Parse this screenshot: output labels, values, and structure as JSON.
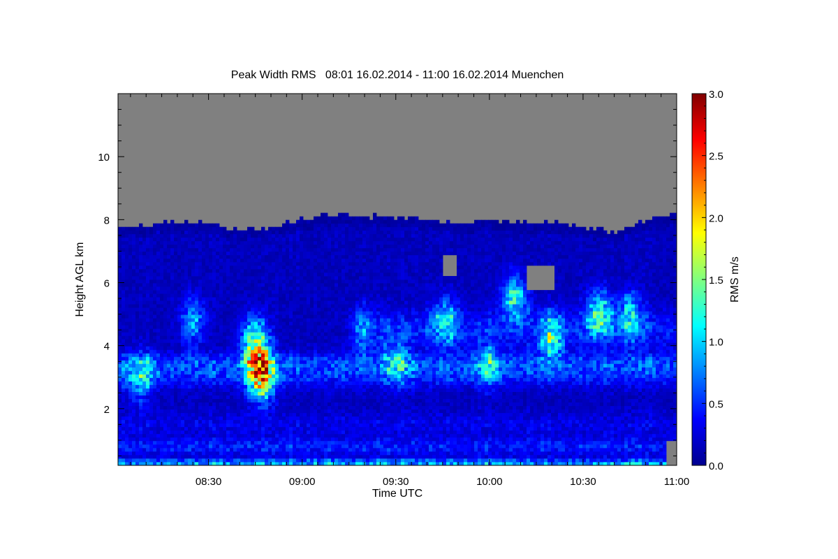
{
  "chart_data": {
    "type": "heatmap",
    "title": "Peak Width RMS   08:01 16.02.2014 - 11:00 16.02.2014 Muenchen",
    "xlabel": "Time UTC",
    "ylabel": "Height AGL km",
    "colorbar_label": "RMS m/s",
    "xlim_minutes": [
      481,
      660
    ],
    "ylim": [
      0.2,
      12.0
    ],
    "clim": [
      0.0,
      3.0
    ],
    "colormap": "jet",
    "missing_color": "#808080",
    "x_ticks": [
      {
        "min": 510,
        "label": "08:30"
      },
      {
        "min": 540,
        "label": "09:00"
      },
      {
        "min": 570,
        "label": "09:30"
      },
      {
        "min": 600,
        "label": "10:00"
      },
      {
        "min": 630,
        "label": "10:30"
      },
      {
        "min": 660,
        "label": "11:00"
      }
    ],
    "y_ticks": [
      {
        "v": 2,
        "label": "2"
      },
      {
        "v": 4,
        "label": "4"
      },
      {
        "v": 6,
        "label": "6"
      },
      {
        "v": 8,
        "label": "8"
      },
      {
        "v": 10,
        "label": "10"
      }
    ],
    "c_ticks": [
      {
        "v": 0.0,
        "label": "0.0"
      },
      {
        "v": 0.5,
        "label": "0.5"
      },
      {
        "v": 1.0,
        "label": "1.0"
      },
      {
        "v": 1.5,
        "label": "1.5"
      },
      {
        "v": 2.0,
        "label": "2.0"
      },
      {
        "v": 2.5,
        "label": "2.5"
      },
      {
        "v": 3.0,
        "label": "3.0"
      }
    ],
    "data_top_km": {
      "minutes": [
        481,
        495,
        510,
        520,
        530,
        540,
        550,
        560,
        570,
        580,
        590,
        600,
        610,
        620,
        630,
        640,
        645,
        650,
        660
      ],
      "km": [
        7.7,
        7.9,
        7.9,
        7.7,
        7.8,
        8.0,
        8.2,
        8.1,
        8.1,
        8.0,
        7.9,
        8.0,
        7.9,
        7.9,
        7.8,
        7.6,
        7.8,
        8.0,
        8.2
      ]
    },
    "missing_patches": [
      {
        "t0": 585,
        "t1": 590,
        "h0": 6.2,
        "h1": 6.9
      },
      {
        "t0": 612,
        "t1": 621,
        "h0": 5.8,
        "h1": 6.6
      },
      {
        "t0": 657,
        "t1": 660,
        "h0": 0.2,
        "h1": 1.0
      }
    ],
    "background_value": 0.2,
    "layers": [
      {
        "h": 0.25,
        "w": 0.15,
        "t0": 481,
        "t1": 660,
        "v": 0.75
      },
      {
        "h": 0.8,
        "w": 0.25,
        "t0": 481,
        "t1": 660,
        "v": 0.3
      },
      {
        "h": 3.1,
        "w": 0.4,
        "t0": 481,
        "t1": 660,
        "v": 0.35
      },
      {
        "h": 3.5,
        "w": 0.3,
        "t0": 481,
        "t1": 660,
        "v": 0.3
      },
      {
        "h": 4.5,
        "w": 0.6,
        "t0": 565,
        "t1": 660,
        "v": 0.3
      },
      {
        "h": 1.5,
        "w": 0.4,
        "t0": 481,
        "t1": 660,
        "v": 0.15
      }
    ],
    "hotspots": [
      {
        "t": 526,
        "h": 3.4,
        "v": 1.5
      },
      {
        "t": 525,
        "h": 4.2,
        "v": 1.2
      },
      {
        "t": 527,
        "h": 2.9,
        "v": 1.1
      },
      {
        "t": 488,
        "h": 3.0,
        "v": 0.8
      },
      {
        "t": 505,
        "h": 4.8,
        "v": 0.7
      },
      {
        "t": 560,
        "h": 4.5,
        "v": 0.8
      },
      {
        "t": 570,
        "h": 3.5,
        "v": 0.7
      },
      {
        "t": 586,
        "h": 4.8,
        "v": 0.9
      },
      {
        "t": 608,
        "h": 5.5,
        "v": 1.1
      },
      {
        "t": 620,
        "h": 4.3,
        "v": 1.0
      },
      {
        "t": 635,
        "h": 5.0,
        "v": 1.2
      },
      {
        "t": 645,
        "h": 5.0,
        "v": 0.8
      },
      {
        "t": 600,
        "h": 3.4,
        "v": 0.6
      }
    ]
  }
}
